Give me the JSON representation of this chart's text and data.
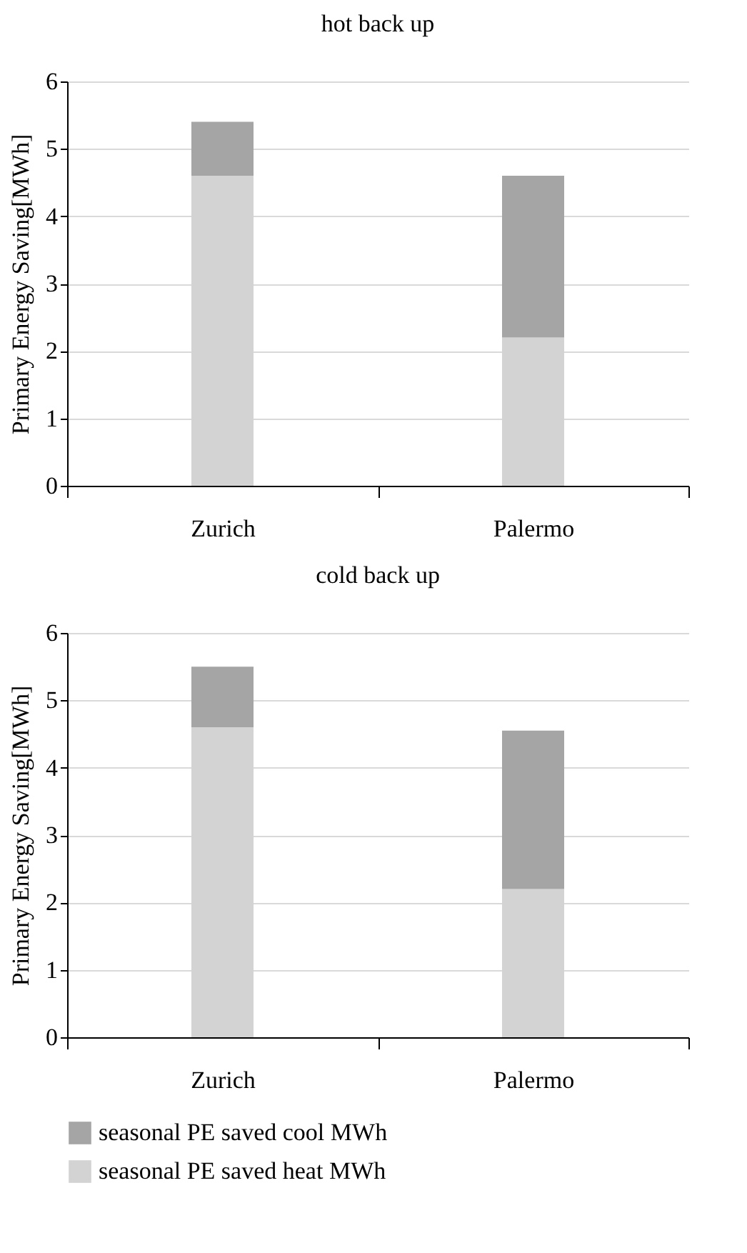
{
  "chart_data": [
    {
      "type": "bar",
      "title": "hot back up",
      "ylabel": "Primary Energy Saving[MWh]",
      "categories": [
        "Zurich",
        "Palermo"
      ],
      "stacked": true,
      "series": [
        {
          "color": "#d3d3d3",
          "values": [
            4.6,
            2.2
          ]
        },
        {
          "color": "#a5a5a5",
          "values": [
            0.8,
            2.4
          ]
        }
      ],
      "ylim": [
        0,
        6
      ],
      "yticks": [
        0,
        1,
        2,
        3,
        4,
        5,
        6
      ],
      "grid": "y",
      "legend": false
    },
    {
      "type": "bar",
      "title": "cold back up",
      "ylabel": "Primary Energy Saving[MWh]",
      "categories": [
        "Zurich",
        "Palermo"
      ],
      "stacked": true,
      "series": [
        {
          "name": "seasonal PE saved heat MWh",
          "color": "#d3d3d3",
          "values": [
            4.6,
            2.2
          ]
        },
        {
          "name": "seasonal PE saved cool MWh",
          "color": "#a5a5a5",
          "values": [
            0.9,
            2.35
          ]
        }
      ],
      "ylim": [
        0,
        6
      ],
      "yticks": [
        0,
        1,
        2,
        3,
        4,
        5,
        6
      ],
      "grid": "y",
      "legend": "bottom"
    }
  ]
}
